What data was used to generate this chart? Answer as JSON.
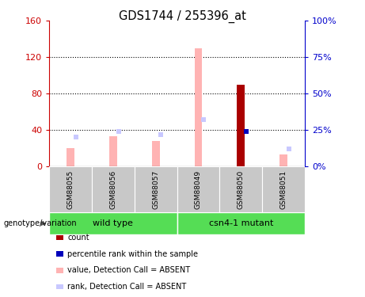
{
  "title": "GDS1744 / 255396_at",
  "samples": [
    "GSM88055",
    "GSM88056",
    "GSM88057",
    "GSM88049",
    "GSM88050",
    "GSM88051"
  ],
  "groups": [
    "wild type",
    "csn4-1 mutant"
  ],
  "ylim_left": [
    0,
    160
  ],
  "ylim_right": [
    0,
    100
  ],
  "yticks_left": [
    0,
    40,
    80,
    120,
    160
  ],
  "yticks_right": [
    0,
    25,
    50,
    75,
    100
  ],
  "yticklabels_left": [
    "0",
    "40",
    "80",
    "120",
    "160"
  ],
  "yticklabels_right": [
    "0%",
    "25%",
    "50%",
    "75%",
    "100%"
  ],
  "value_absent": [
    20,
    33,
    28,
    130,
    0,
    13
  ],
  "rank_absent_pct": [
    20,
    24,
    22,
    32,
    0,
    12
  ],
  "count_value": [
    0,
    0,
    0,
    0,
    90,
    0
  ],
  "percentile_rank_pct": [
    0,
    0,
    0,
    0,
    24,
    0
  ],
  "color_value_absent": "#ffb3b3",
  "color_rank_absent": "#c8c8ff",
  "color_count": "#aa0000",
  "color_percentile": "#0000bb",
  "left_axis_color": "#cc0000",
  "right_axis_color": "#0000cc",
  "background_labels": "#c8c8c8",
  "background_group": "#55dd55",
  "legend_labels": [
    "count",
    "percentile rank within the sample",
    "value, Detection Call = ABSENT",
    "rank, Detection Call = ABSENT"
  ],
  "legend_colors": [
    "#aa0000",
    "#0000bb",
    "#ffb3b3",
    "#c8c8ff"
  ]
}
